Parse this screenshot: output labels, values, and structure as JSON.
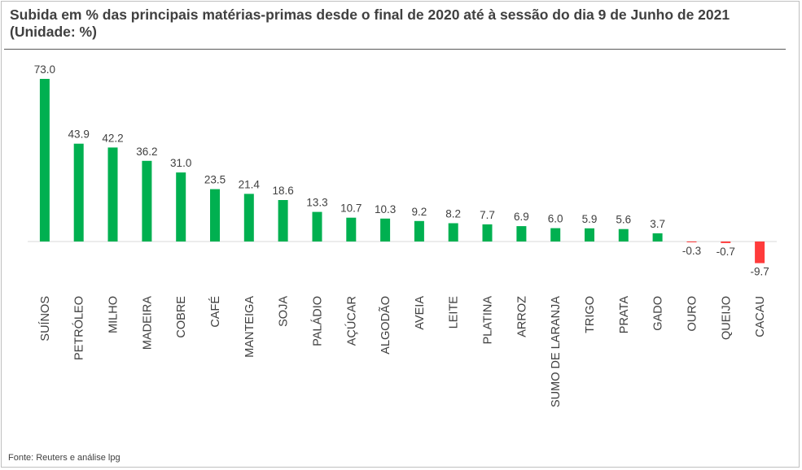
{
  "title": "Subida em % das principais matérias-primas desde o final de 2020 até à sessão do dia 9 de Junho de 2021 (Unidade: %)",
  "source": "Fonte: Reuters e análise lpg",
  "colors": {
    "positive": "#00b050",
    "negative": "#ff3b3b",
    "axis": "#d9d9d9",
    "text": "#404040"
  },
  "chart_data": {
    "type": "bar",
    "title": "Subida em % das principais matérias-primas desde o final de 2020 até à sessão do dia 9 de Junho de 2021 (Unidade: %)",
    "categories": [
      "SUÍNOS",
      "PETRÓLEO",
      "MILHO",
      "MADEIRA",
      "COBRE",
      "CAFÉ",
      "MANTEIGA",
      "SOJA",
      "PALÁDIO",
      "AÇÚCAR",
      "ALGODÃO",
      "AVEIA",
      "LEITE",
      "PLATINA",
      "ARROZ",
      "SUMO DE LARANJA",
      "TRIGO",
      "PRATA",
      "GADO",
      "OURO",
      "QUEIJO",
      "CACAU"
    ],
    "values": [
      73.0,
      43.9,
      42.2,
      36.2,
      31.0,
      23.5,
      21.4,
      18.6,
      13.3,
      10.7,
      10.3,
      9.2,
      8.2,
      7.7,
      6.9,
      6.0,
      5.9,
      5.6,
      3.7,
      -0.3,
      -0.7,
      -9.7
    ],
    "value_labels": [
      "73.0",
      "43.9",
      "42.2",
      "36.2",
      "31.0",
      "23.5",
      "21.4",
      "18.6",
      "13.3",
      "10.7",
      "10.3",
      "9.2",
      "8.2",
      "7.7",
      "6.9",
      "6.0",
      "5.9",
      "5.6",
      "3.7",
      "-0.3",
      "-0.7",
      "-9.7"
    ],
    "xlabel": "",
    "ylabel": "",
    "ylim": [
      -10,
      75
    ],
    "grid": false,
    "legend": "none"
  }
}
